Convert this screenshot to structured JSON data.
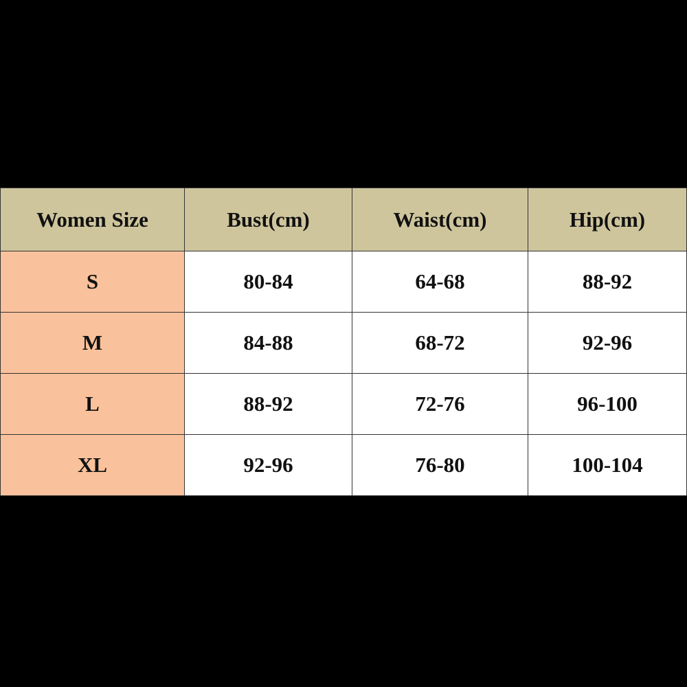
{
  "table": {
    "header": [
      "Women Size",
      "Bust(cm)",
      "Waist(cm)",
      "Hip(cm)"
    ],
    "rows": [
      [
        "S",
        "80-84",
        "64-68",
        "88-92"
      ],
      [
        "M",
        "84-88",
        "68-72",
        "92-96"
      ],
      [
        "L",
        "88-92",
        "72-76",
        "96-100"
      ],
      [
        "XL",
        "92-96",
        "76-80",
        "100-104"
      ]
    ]
  }
}
